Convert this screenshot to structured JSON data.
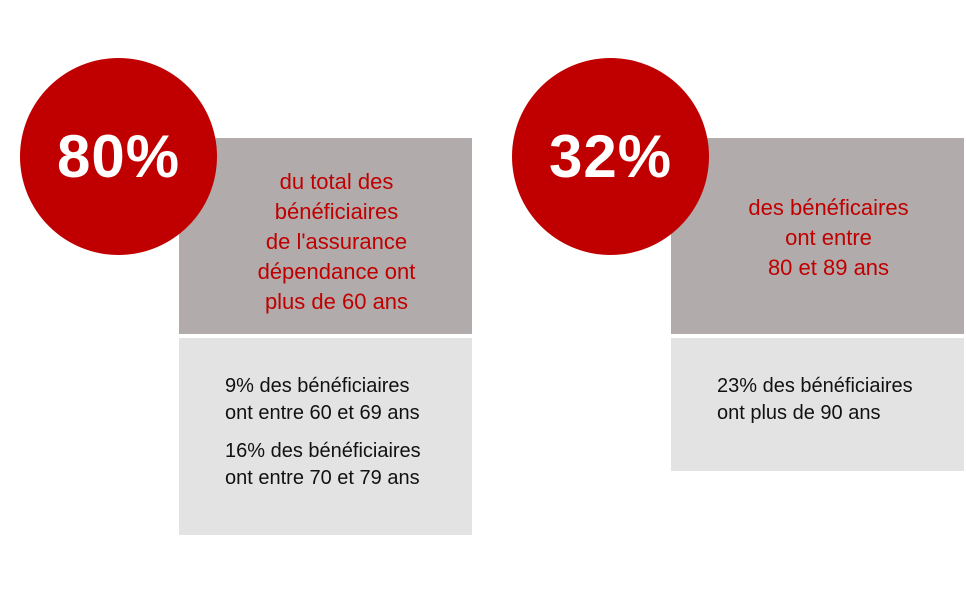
{
  "colors": {
    "accent_red": "#c00000",
    "header_gray": "#b1abab",
    "detail_gray": "#e3e3e3"
  },
  "cards": [
    {
      "percent": "80%",
      "headline": "du total des\nbénéficiaires\nde l'assurance\ndépendance  ont\nplus de 60 ans",
      "details": [
        "9% des bénéficiaires\nont entre 60 et 69 ans",
        "16% des bénéficiaires\nont entre 70 et 79 ans"
      ]
    },
    {
      "percent": "32%",
      "headline": "des bénéficaires\nont entre\n80 et 89 ans",
      "details": [
        "23% des bénéficiaires\nont plus de 90 ans"
      ]
    }
  ]
}
